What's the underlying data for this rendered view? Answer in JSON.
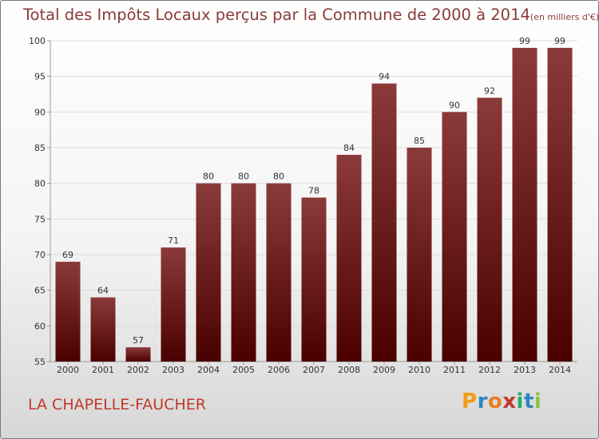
{
  "title": {
    "main": "Total des Impôts Locaux perçus par la Commune de 2000 à 2014",
    "unit": "(en milliers d'€)"
  },
  "commune": "LA CHAPELLE-FAUCHER",
  "logo": {
    "text": "Proxiti",
    "letters": [
      "P",
      "r",
      "o",
      "x",
      "i",
      "t",
      "i"
    ],
    "colors": [
      "#f39c12",
      "#2e86c1",
      "#e67e22",
      "#c0392b",
      "#27ae60",
      "#2e86c1",
      "#8bc34a"
    ]
  },
  "colors": {
    "bar_top": "#8b3a3a",
    "bar_bottom": "#4a0000",
    "grid": "#dcdcdc",
    "axis": "#999999"
  },
  "chart_data": {
    "type": "bar",
    "title": "Total des Impôts Locaux perçus par la Commune de 2000 à 2014",
    "ylabel": "en milliers d'€",
    "xlabel": "",
    "categories": [
      "2000",
      "2001",
      "2002",
      "2003",
      "2004",
      "2005",
      "2006",
      "2007",
      "2008",
      "2009",
      "2010",
      "2011",
      "2012",
      "2013",
      "2014"
    ],
    "values": [
      69,
      64,
      57,
      71,
      80,
      80,
      80,
      78,
      84,
      94,
      85,
      90,
      92,
      99,
      99
    ],
    "ylim": [
      55,
      100
    ],
    "yticks": [
      55,
      60,
      65,
      70,
      75,
      80,
      85,
      90,
      95,
      100
    ],
    "grid": true
  }
}
